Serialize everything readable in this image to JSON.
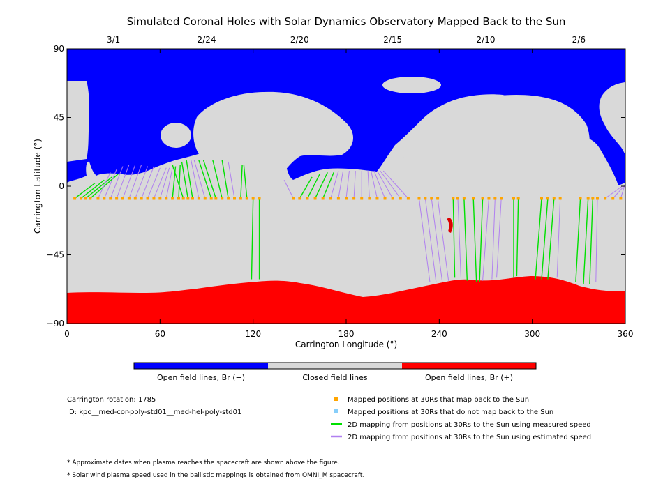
{
  "chart_data": {
    "type": "map",
    "title": "Simulated Coronal Holes with Solar Dynamics Observatory Mapped Back to the Sun",
    "xlabel": "Carrington Longitude (°)",
    "ylabel": "Carrington Latitude (°)",
    "xlim": [
      0,
      360
    ],
    "ylim": [
      -90,
      90
    ],
    "x_ticks": [
      0,
      60,
      120,
      180,
      240,
      300,
      360
    ],
    "y_ticks": [
      -90,
      -45,
      0,
      45,
      90
    ],
    "top_dates": [
      {
        "label": "3/1",
        "lon": 30
      },
      {
        "label": "2/24",
        "lon": 90
      },
      {
        "label": "2/20",
        "lon": 150
      },
      {
        "label": "2/15",
        "lon": 210
      },
      {
        "label": "2/10",
        "lon": 270
      },
      {
        "label": "2/6",
        "lon": 330
      }
    ],
    "colors": {
      "open_negative": "#0000ff",
      "closed": "#d9d9d9",
      "open_positive": "#ff0000",
      "mapped_point": "#ffa500",
      "unmapped_point": "#87cefa",
      "measured_line": "#00e000",
      "estimated_line": "#b080f0"
    },
    "colorbar": {
      "labels": [
        "Open field lines, Br (−)",
        "Closed field lines",
        "Open field lines, Br (+)"
      ]
    },
    "footpoint_latitude": -8,
    "mappings": [
      {
        "lon30": 5,
        "lon0": 18,
        "lat0": 2,
        "speed": "measured"
      },
      {
        "lon30": 9,
        "lon0": 24,
        "lat0": 4,
        "speed": "measured"
      },
      {
        "lon30": 12,
        "lon0": 29,
        "lat0": 6,
        "speed": "measured"
      },
      {
        "lon30": 15,
        "lon0": 33,
        "lat0": 8,
        "speed": "measured"
      },
      {
        "lon30": 20,
        "lon0": 28,
        "lat0": 9,
        "speed": "estimated"
      },
      {
        "lon30": 24,
        "lon0": 32,
        "lat0": 11,
        "speed": "estimated"
      },
      {
        "lon30": 28,
        "lon0": 36,
        "lat0": 13,
        "speed": "estimated"
      },
      {
        "lon30": 32,
        "lon0": 40,
        "lat0": 14,
        "speed": "estimated"
      },
      {
        "lon30": 36,
        "lon0": 44,
        "lat0": 14,
        "speed": "estimated"
      },
      {
        "lon30": 40,
        "lon0": 48,
        "lat0": 14,
        "speed": "estimated"
      },
      {
        "lon30": 44,
        "lon0": 52,
        "lat0": 13,
        "speed": "estimated"
      },
      {
        "lon30": 48,
        "lon0": 56,
        "lat0": 13,
        "speed": "estimated"
      },
      {
        "lon30": 52,
        "lon0": 60,
        "lat0": 12,
        "speed": "estimated"
      },
      {
        "lon30": 56,
        "lon0": 64,
        "lat0": 12,
        "speed": "estimated"
      },
      {
        "lon30": 60,
        "lon0": 66,
        "lat0": 12,
        "speed": "estimated"
      },
      {
        "lon30": 64,
        "lon0": 68,
        "lat0": 12,
        "speed": "estimated"
      },
      {
        "lon30": 68,
        "lon0": 70,
        "lat0": 13,
        "speed": "measured"
      },
      {
        "lon30": 72,
        "lon0": 73,
        "lat0": 14,
        "speed": "measured"
      },
      {
        "lon30": 75,
        "lon0": 68,
        "lat0": 14,
        "speed": "measured"
      },
      {
        "lon30": 78,
        "lon0": 74,
        "lat0": 16,
        "speed": "measured"
      },
      {
        "lon30": 81,
        "lon0": 77,
        "lat0": 17,
        "speed": "measured"
      },
      {
        "lon30": 85,
        "lon0": 80,
        "lat0": 17,
        "speed": "estimated"
      },
      {
        "lon30": 89,
        "lon0": 82,
        "lat0": 17,
        "speed": "estimated"
      },
      {
        "lon30": 93,
        "lon0": 85,
        "lat0": 17,
        "speed": "measured"
      },
      {
        "lon30": 96,
        "lon0": 88,
        "lat0": 17,
        "speed": "measured"
      },
      {
        "lon30": 100,
        "lon0": 94,
        "lat0": 17,
        "speed": "measured"
      },
      {
        "lon30": 104,
        "lon0": 100,
        "lat0": 17,
        "speed": "measured"
      },
      {
        "lon30": 108,
        "lon0": 104,
        "lat0": 16,
        "speed": "estimated"
      },
      {
        "lon30": 112,
        "lon0": 113,
        "lat0": 14,
        "speed": "measured"
      },
      {
        "lon30": 116,
        "lon0": 114,
        "lat0": 14,
        "speed": "measured"
      },
      {
        "lon30": 120,
        "lon0": 119,
        "lat0": -61,
        "speed": "measured"
      },
      {
        "lon30": 124,
        "lon0": 124,
        "lat0": -61,
        "speed": "measured"
      },
      {
        "lon30": 146,
        "lon0": 140,
        "lat0": 4,
        "speed": "estimated"
      },
      {
        "lon30": 150,
        "lon0": 158,
        "lat0": 6,
        "speed": "measured"
      },
      {
        "lon30": 155,
        "lon0": 163,
        "lat0": 8,
        "speed": "measured"
      },
      {
        "lon30": 160,
        "lon0": 168,
        "lat0": 9,
        "speed": "measured"
      },
      {
        "lon30": 165,
        "lon0": 172,
        "lat0": 9,
        "speed": "measured"
      },
      {
        "lon30": 170,
        "lon0": 175,
        "lat0": 10,
        "speed": "estimated"
      },
      {
        "lon30": 175,
        "lon0": 178,
        "lat0": 10,
        "speed": "estimated"
      },
      {
        "lon30": 180,
        "lon0": 182,
        "lat0": 10,
        "speed": "estimated"
      },
      {
        "lon30": 185,
        "lon0": 186,
        "lat0": 10,
        "speed": "estimated"
      },
      {
        "lon30": 190,
        "lon0": 190,
        "lat0": 10,
        "speed": "estimated"
      },
      {
        "lon30": 195,
        "lon0": 194,
        "lat0": 10,
        "speed": "estimated"
      },
      {
        "lon30": 200,
        "lon0": 196,
        "lat0": 10,
        "speed": "estimated"
      },
      {
        "lon30": 205,
        "lon0": 198,
        "lat0": 10,
        "speed": "estimated"
      },
      {
        "lon30": 210,
        "lon0": 200,
        "lat0": 10,
        "speed": "estimated"
      },
      {
        "lon30": 215,
        "lon0": 202,
        "lat0": 10,
        "speed": "estimated"
      },
      {
        "lon30": 220,
        "lon0": 204,
        "lat0": 10,
        "speed": "estimated"
      },
      {
        "lon30": 227,
        "lon0": 234,
        "lat0": -63,
        "speed": "estimated"
      },
      {
        "lon30": 231,
        "lon0": 238,
        "lat0": -63,
        "speed": "estimated"
      },
      {
        "lon30": 235,
        "lon0": 242,
        "lat0": -63,
        "speed": "estimated"
      },
      {
        "lon30": 239,
        "lon0": 246,
        "lat0": -62,
        "speed": "estimated"
      },
      {
        "lon30": 249,
        "lon0": 250,
        "lat0": -60,
        "speed": "measured"
      },
      {
        "lon30": 252,
        "lon0": 254,
        "lat0": -60,
        "speed": "estimated"
      },
      {
        "lon30": 256,
        "lon0": 258,
        "lat0": -62,
        "speed": "measured"
      },
      {
        "lon30": 262,
        "lon0": 264,
        "lat0": -63,
        "speed": "measured"
      },
      {
        "lon30": 268,
        "lon0": 266,
        "lat0": -63,
        "speed": "measured"
      },
      {
        "lon30": 272,
        "lon0": 268,
        "lat0": -62,
        "speed": "estimated"
      },
      {
        "lon30": 276,
        "lon0": 274,
        "lat0": -61,
        "speed": "estimated"
      },
      {
        "lon30": 280,
        "lon0": 277,
        "lat0": -60,
        "speed": "estimated"
      },
      {
        "lon30": 288,
        "lon0": 288,
        "lat0": -60,
        "speed": "measured"
      },
      {
        "lon30": 291,
        "lon0": 290,
        "lat0": -59,
        "speed": "measured"
      },
      {
        "lon30": 306,
        "lon0": 302,
        "lat0": -61,
        "speed": "measured"
      },
      {
        "lon30": 310,
        "lon0": 306,
        "lat0": -61,
        "speed": "measured"
      },
      {
        "lon30": 314,
        "lon0": 310,
        "lat0": -61,
        "speed": "measured"
      },
      {
        "lon30": 318,
        "lon0": 316,
        "lat0": -60,
        "speed": "estimated"
      },
      {
        "lon30": 331,
        "lon0": 328,
        "lat0": -63,
        "speed": "measured"
      },
      {
        "lon30": 336,
        "lon0": 333,
        "lat0": -64,
        "speed": "measured"
      },
      {
        "lon30": 339,
        "lon0": 337,
        "lat0": -64,
        "speed": "measured"
      },
      {
        "lon30": 342,
        "lon0": 341,
        "lat0": -63,
        "speed": "estimated"
      },
      {
        "lon30": 347,
        "lon0": 358,
        "lat0": 0,
        "speed": "estimated"
      },
      {
        "lon30": 352,
        "lon0": 360,
        "lat0": 1,
        "speed": "estimated"
      },
      {
        "lon30": 357,
        "lon0": 360,
        "lat0": 2,
        "speed": "estimated"
      }
    ]
  },
  "info": {
    "rotation": "Carrington rotation: 1785",
    "id": "ID: kpo__med-cor-poly-std01__med-hel-poly-std01"
  },
  "legend": [
    {
      "label": "Mapped positions at 30Rs that map back to the Sun",
      "kind": "square",
      "color": "#ffa500"
    },
    {
      "label": "Mapped positions at 30Rs that do not map back to the Sun",
      "kind": "square",
      "color": "#87cefa"
    },
    {
      "label": "2D mapping from positions at 30Rs to the Sun using measured speed",
      "kind": "line",
      "color": "#00e000"
    },
    {
      "label": "2D mapping from positions at 30Rs to the Sun using estimated speed",
      "kind": "line",
      "color": "#b080f0"
    }
  ],
  "footnotes": [
    "* Approximate dates when plasma reaches the spacecraft are shown above the figure.",
    "* Solar wind plasma speed used in the ballistic mappings is obtained from OMNI_M spacecraft."
  ]
}
